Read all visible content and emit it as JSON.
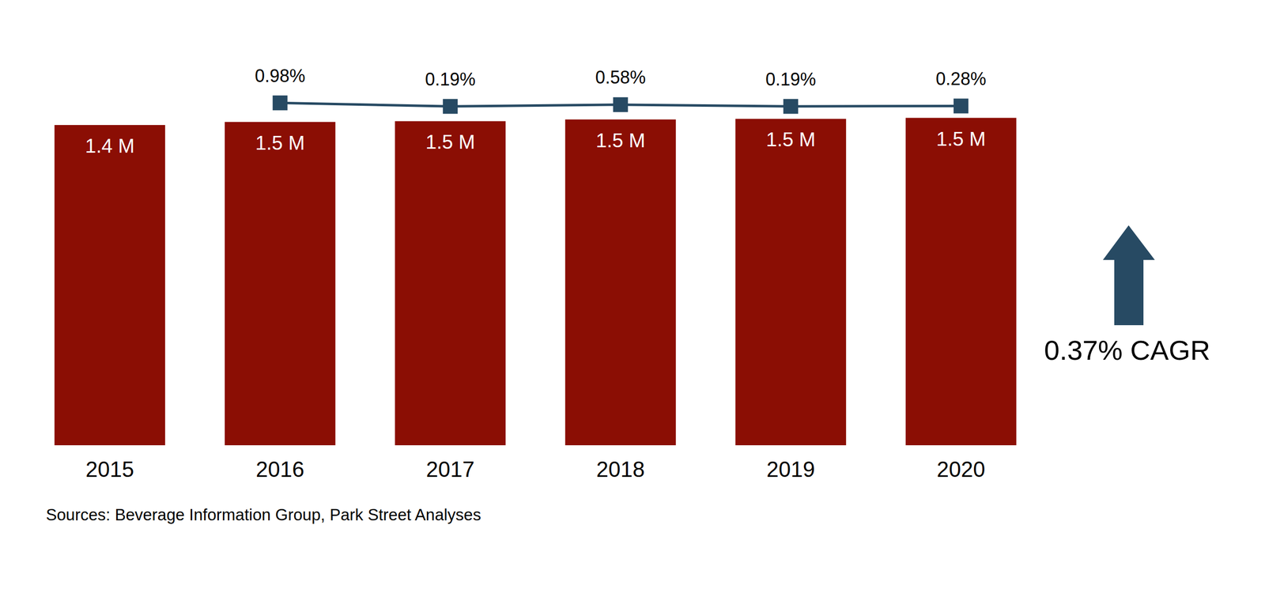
{
  "chart_data": {
    "type": "bar",
    "categories": [
      "2015",
      "2016",
      "2017",
      "2018",
      "2019",
      "2020"
    ],
    "series": [
      {
        "type": "bar",
        "color": "#8b0e04",
        "values": [
          1.44,
          1.454,
          1.457,
          1.465,
          1.468,
          1.472
        ],
        "value_labels": [
          "1.4 M",
          "1.5 M",
          "1.5 M",
          "1.5 M",
          "1.5 M",
          "1.5 M"
        ]
      },
      {
        "type": "line",
        "axis": "y2",
        "color": "#274a63",
        "marker": "square",
        "line_style": "solid",
        "values": [
          null,
          0.98,
          0.19,
          0.58,
          0.19,
          0.28
        ],
        "value_labels": [
          null,
          "0.98%",
          "0.19%",
          "0.58%",
          "0.19%",
          "0.28%"
        ]
      }
    ],
    "ylim": [
      0,
      1.8
    ],
    "y2lim": [
      -76,
      14
    ],
    "grid": false,
    "tick_labels": "x",
    "data_labels": true,
    "annotations": [
      "0.37% CAGR"
    ],
    "source": "Sources: Beverage Information Group, Park Street Analyses"
  }
}
